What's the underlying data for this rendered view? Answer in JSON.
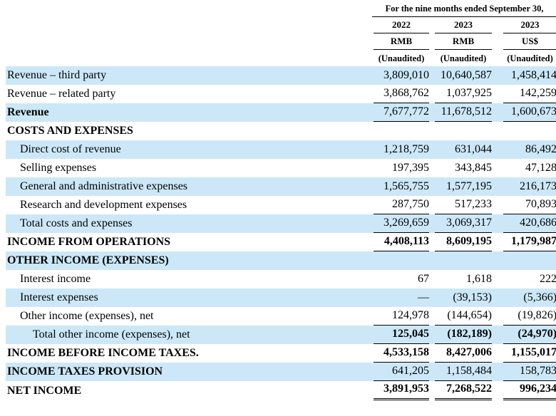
{
  "colors": {
    "highlight": "#cce8f8",
    "rule": "#000000",
    "text": "#000000"
  },
  "header": {
    "period": "For the nine months ended September 30,",
    "columns": [
      {
        "year": "2022",
        "currency": "RMB",
        "note": "(Unaudited)"
      },
      {
        "year": "2023",
        "currency": "RMB",
        "note": "(Unaudited)"
      },
      {
        "year": "2023",
        "currency": "US$",
        "note": "(Unaudited)"
      }
    ]
  },
  "table": {
    "rows": [
      {
        "label": "Revenue – third party",
        "values": [
          "3,809,010",
          "10,640,587",
          "1,458,414"
        ]
      },
      {
        "label": "Revenue – related party",
        "values": [
          "3,868,762",
          "1,037,925",
          "142,259"
        ]
      },
      {
        "label": "Revenue",
        "values": [
          "7,677,772",
          "11,678,512",
          "1,600,673"
        ]
      },
      {
        "label": "COSTS AND EXPENSES",
        "values": [
          "",
          "",
          ""
        ]
      },
      {
        "label": "Direct cost of revenue",
        "values": [
          "1,218,759",
          "631,044",
          "86,492"
        ]
      },
      {
        "label": "Selling expenses",
        "values": [
          "197,395",
          "343,845",
          "47,128"
        ]
      },
      {
        "label": "General and administrative expenses",
        "values": [
          "1,565,755",
          "1,577,195",
          "216,173"
        ]
      },
      {
        "label": "Research and development expenses",
        "values": [
          "287,750",
          "517,233",
          "70,893"
        ]
      },
      {
        "label": "Total costs and expenses",
        "values": [
          "3,269,659",
          "3,069,317",
          "420,686"
        ]
      },
      {
        "label": "INCOME FROM OPERATIONS",
        "values": [
          "4,408,113",
          "8,609,195",
          "1,179,987"
        ]
      },
      {
        "label": "OTHER INCOME (EXPENSES)",
        "values": [
          "",
          "",
          ""
        ]
      },
      {
        "label": "Interest income",
        "values": [
          "67",
          "1,618",
          "222"
        ]
      },
      {
        "label": "Interest expenses",
        "values": [
          "—",
          "(39,153)",
          "(5,366)"
        ]
      },
      {
        "label": "Other income (expenses), net",
        "values": [
          "124,978",
          "(144,654)",
          "(19,826)"
        ]
      },
      {
        "label": "Total other income (expenses), net",
        "values": [
          "125,045",
          "(182,189)",
          "(24,970)"
        ]
      },
      {
        "label": "INCOME BEFORE INCOME TAXES.",
        "values": [
          "4,533,158",
          "8,427,006",
          "1,155,017"
        ]
      },
      {
        "label": "INCOME TAXES PROVISION",
        "values": [
          "641,205",
          "1,158,484",
          "158,783"
        ]
      },
      {
        "label": "NET INCOME",
        "values": [
          "3,891,953",
          "7,268,522",
          "996,234"
        ]
      }
    ]
  }
}
